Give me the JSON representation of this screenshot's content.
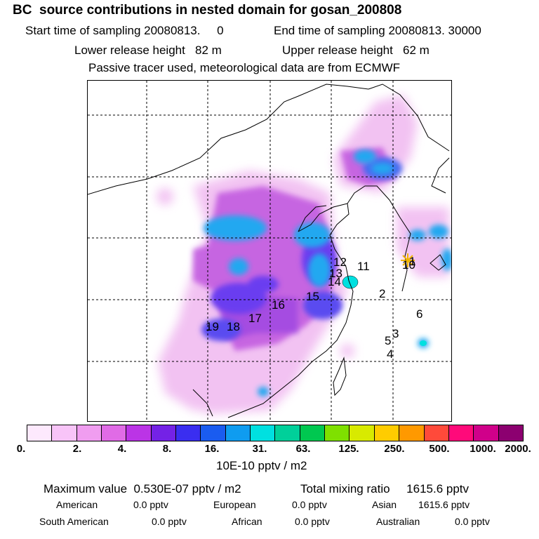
{
  "title": "BC  source contributions in nested domain for gosan_200808",
  "header": {
    "start_time": "Start time of sampling 20080813.     0",
    "end_time": "End time of sampling 20080813. 30000",
    "lower_release": "Lower release height   82 m",
    "upper_release": "Upper release height   62 m",
    "tracer_note": "Passive tracer used, meteorological data are from ECMWF"
  },
  "map": {
    "markers": [
      "1",
      "2",
      "3",
      "4",
      "5",
      "6",
      "10",
      "11",
      "12",
      "13",
      "14",
      "15",
      "16",
      "17",
      "18",
      "19"
    ],
    "receptor_color": "#f0b400"
  },
  "colorbar": {
    "colors": [
      "#fde9fd",
      "#f8c4f8",
      "#f09df0",
      "#e06be6",
      "#bb34e6",
      "#7422e6",
      "#3a2ef0",
      "#1a5cf0",
      "#0f9cf0",
      "#00e0e0",
      "#00d09a",
      "#00c850",
      "#7fe000",
      "#d8ea00",
      "#ffcc00",
      "#ff9900",
      "#ff4a3a",
      "#ff0a7a",
      "#d0008a",
      "#8c0070"
    ],
    "tick_labels": [
      "0.",
      "2.",
      "4.",
      "8.",
      "16.",
      "31.",
      "63.",
      "125.",
      "250.",
      "500.",
      "1000.",
      "2000."
    ],
    "units": "10E-10 pptv / m2"
  },
  "stats": {
    "max_value": "Maximum value  0.530E-07 pptv / m2",
    "total": "Total mixing ratio     1615.6 pptv",
    "regions": [
      {
        "name": "American",
        "value": "0.0 pptv"
      },
      {
        "name": "European",
        "value": "0.0 pptv"
      },
      {
        "name": "Asian",
        "value": "1615.6 pptv"
      },
      {
        "name": "South American",
        "value": "0.0 pptv"
      },
      {
        "name": "African",
        "value": "0.0 pptv"
      },
      {
        "name": "Australian",
        "value": "0.0 pptv"
      }
    ]
  }
}
